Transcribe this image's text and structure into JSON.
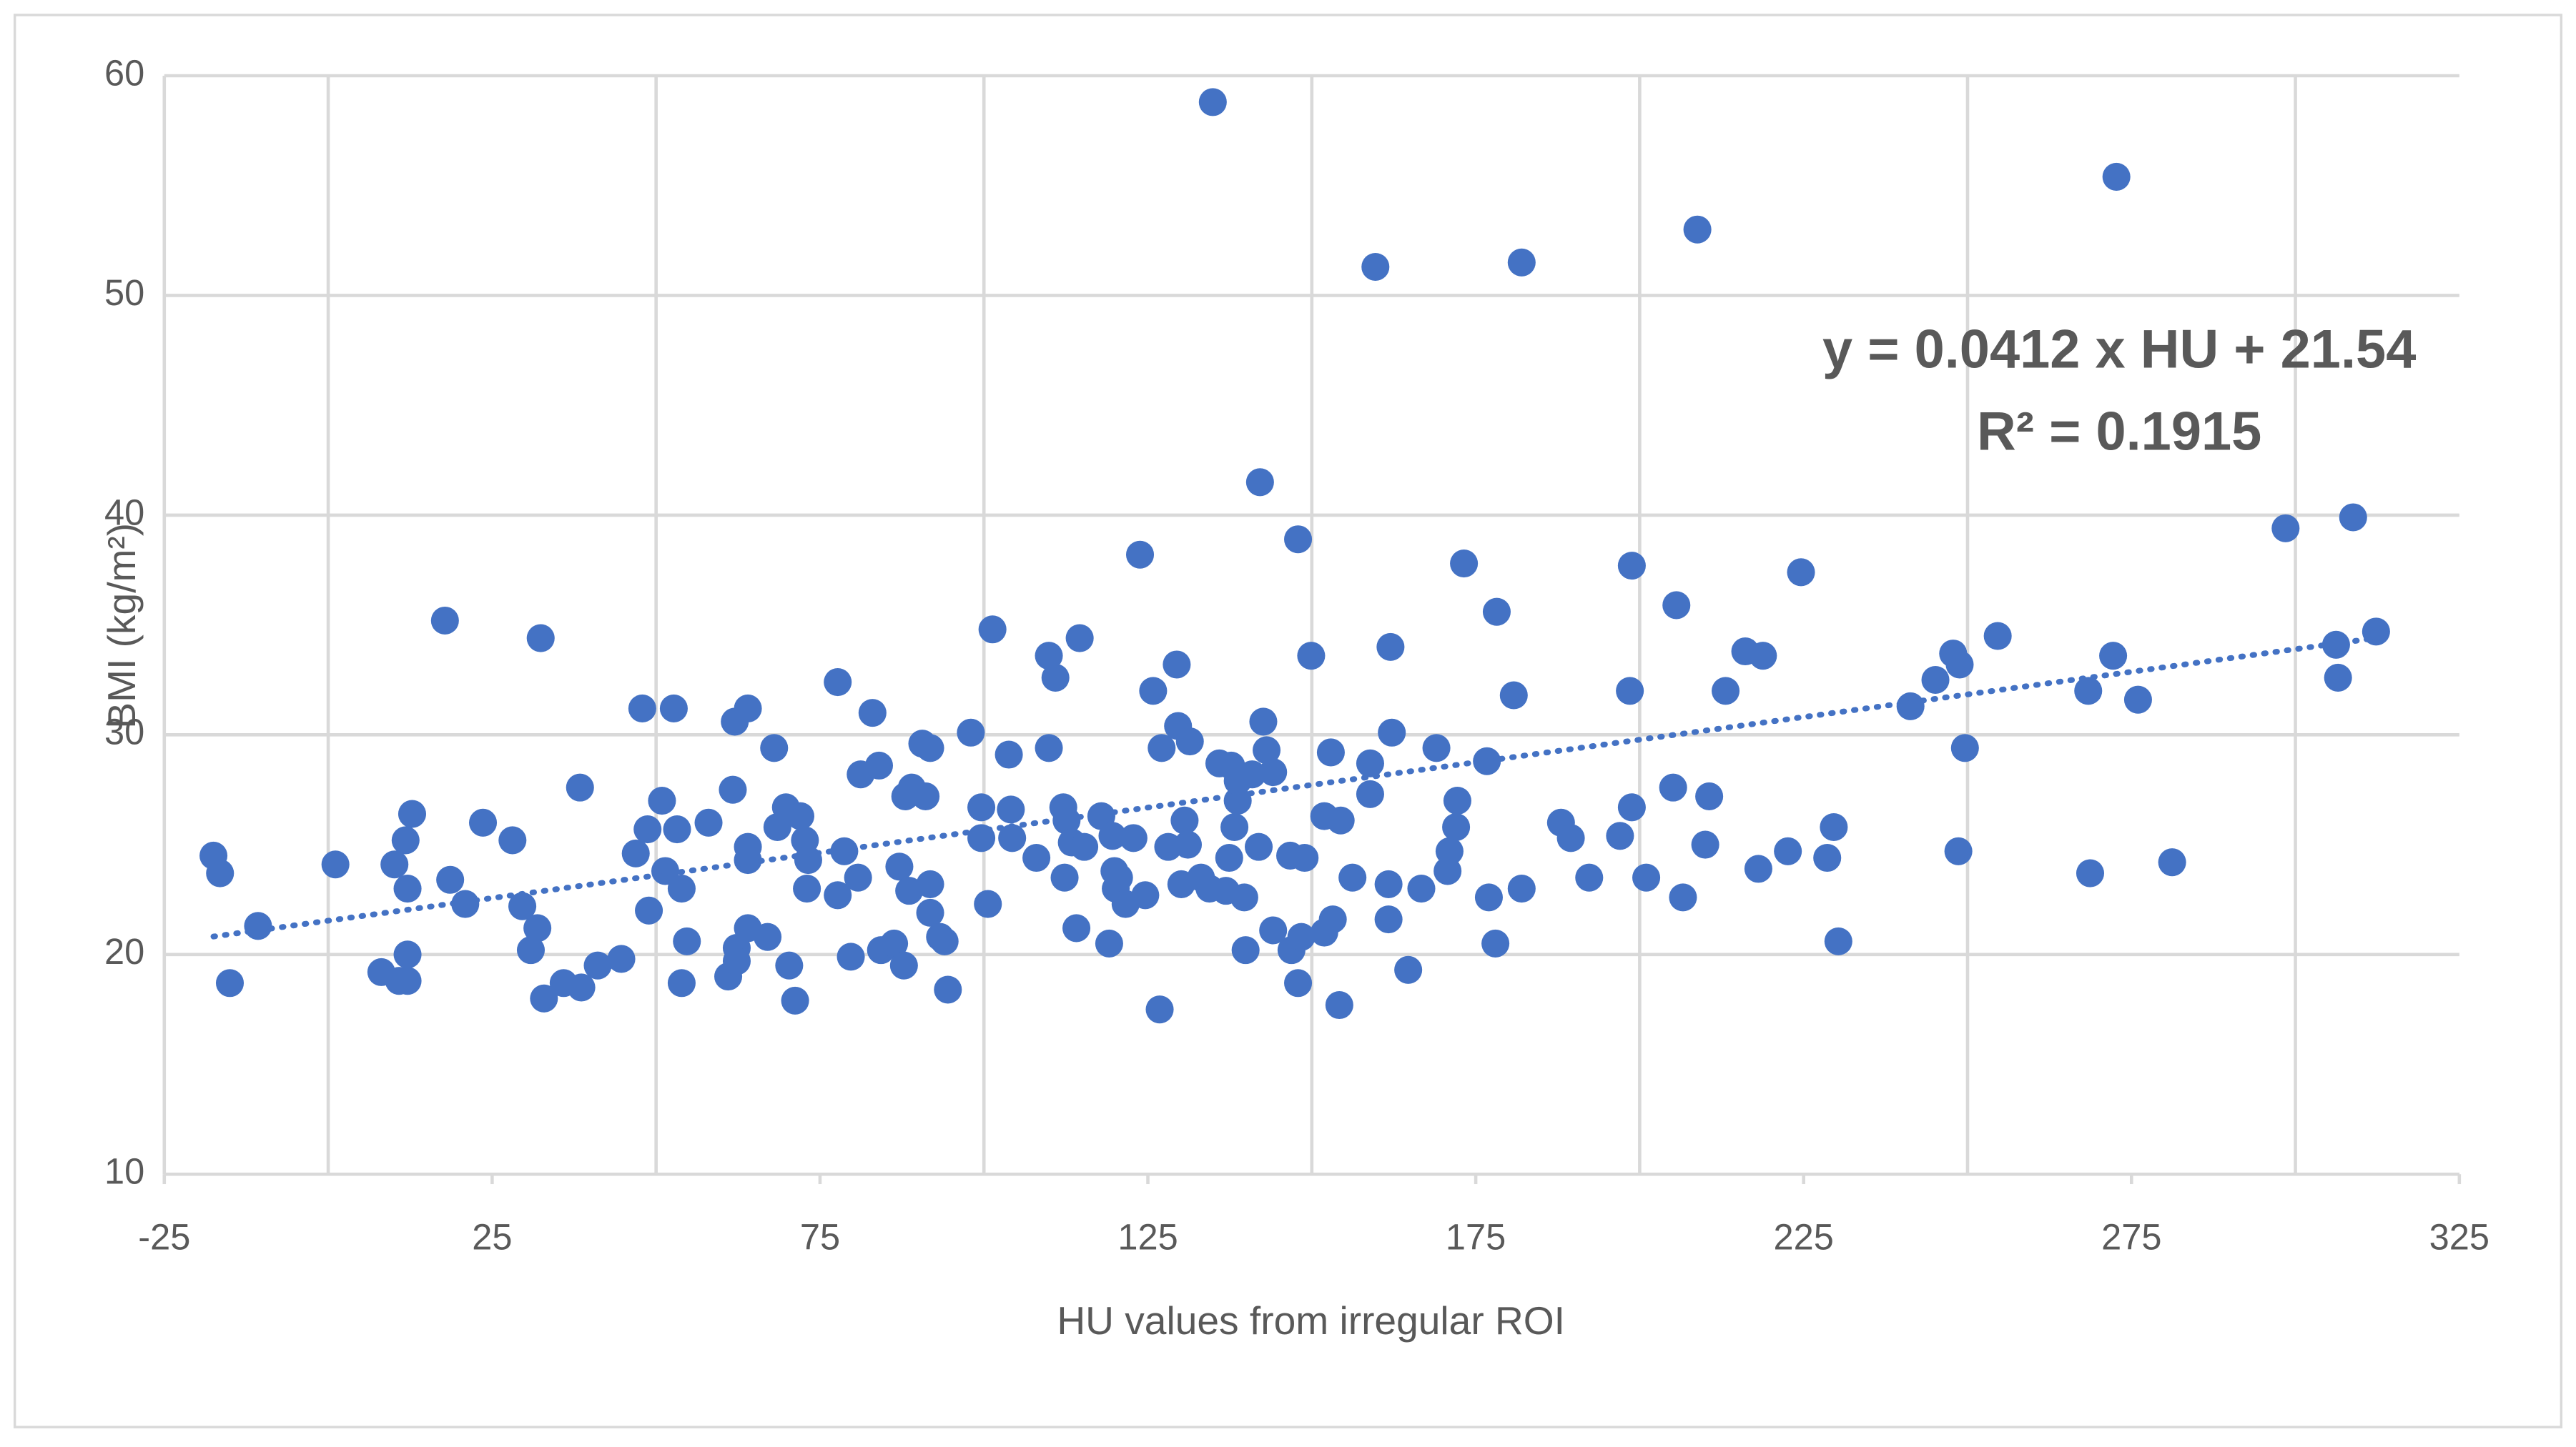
{
  "chart_data": {
    "type": "scatter",
    "x_label": "HU values from irregular ROI",
    "y_label": "BMI (kg/m²)",
    "annotations": [
      "y = 0.0412 x HU + 21.54",
      "R² = 0.1915"
    ],
    "trendline": {
      "slope": 0.0412,
      "intercept": 21.54,
      "style": "dotted"
    },
    "color": "#4472c4",
    "xlim": [
      -25,
      325
    ],
    "xticks": [
      -25,
      25,
      75,
      125,
      175,
      225,
      275,
      325
    ],
    "x_gridlines": [
      0,
      50,
      100,
      150,
      200,
      250,
      300
    ],
    "ylim": [
      10,
      60
    ],
    "yticks": [
      10,
      20,
      30,
      40,
      50,
      60
    ],
    "grid": true,
    "series": [
      {
        "name": "BMI",
        "x": [
          -17.5,
          -16.5,
          -15,
          -10.7,
          1.1,
          8.1,
          10.1,
          10.8,
          11.8,
          12.1,
          12.1,
          12.1,
          12.8,
          17.8,
          18.6,
          20.9,
          23.6,
          28.1,
          29.6,
          30.9,
          31.9,
          32.4,
          32.9,
          35.9,
          38.4,
          38.6,
          41.1,
          44.7,
          46.9,
          47.9,
          48.7,
          48.9,
          50.9,
          51.4,
          52.7,
          53.2,
          53.9,
          53.9,
          54.7,
          58.0,
          61.0,
          61.7,
          62.0,
          62.3,
          62.3,
          64.0,
          64.0,
          64.0,
          64.0,
          67.0,
          68.0,
          68.5,
          69.8,
          70.3,
          71.2,
          72.0,
          72.7,
          73.2,
          73.0,
          77.7,
          77.7,
          78.7,
          79.7,
          80.8,
          81.2,
          83.0,
          84.0,
          84.3,
          86.3,
          87.1,
          87.8,
          88.0,
          88.6,
          89.0,
          90.6,
          91.1,
          91.8,
          91.8,
          91.8,
          93.3,
          94.0,
          94.5,
          98.0,
          99.6,
          99.6,
          100.6,
          101.3,
          103.8,
          104.1,
          104.3,
          108.0,
          109.9,
          109.9,
          110.9,
          112.1,
          112.6,
          112.3,
          113.4,
          114.1,
          114.6,
          115.3,
          117.9,
          119.1,
          119.6,
          119.9,
          120.1,
          120.6,
          121.6,
          122.8,
          123.8,
          124.6,
          125.8,
          126.8,
          127.1,
          128.1,
          129.4,
          129.6,
          130.1,
          130.6,
          131.1,
          131.4,
          133.1,
          134.4,
          134.9,
          135.9,
          136.9,
          137.4,
          137.7,
          138.2,
          138.7,
          138.7,
          139.7,
          139.9,
          140.9,
          141.9,
          142.1,
          142.6,
          143.1,
          144.1,
          144.1,
          146.7,
          146.9,
          147.9,
          147.9,
          148.4,
          148.9,
          149.9,
          151.9,
          151.9,
          152.9,
          153.2,
          154.2,
          154.4,
          156.2,
          158.9,
          158.9,
          159.7,
          161.7,
          161.7,
          162.0,
          162.2,
          164.7,
          166.7,
          169.0,
          170.7,
          171.0,
          172.0,
          172.2,
          173.2,
          176.7,
          177.0,
          178.0,
          178.2,
          180.8,
          182.0,
          182.0,
          188.0,
          189.5,
          192.3,
          197.0,
          198.5,
          198.8,
          198.8,
          201.0,
          205.1,
          205.6,
          206.6,
          208.8,
          210.0,
          210.6,
          213.1,
          216.1,
          218.1,
          218.8,
          222.6,
          224.6,
          228.6,
          229.6,
          230.3,
          241.3,
          245.1,
          247.8,
          248.6,
          248.8,
          249.6,
          254.6,
          268.4,
          268.7,
          272.2,
          272.7,
          276.0,
          281.2,
          298.5,
          306.2,
          306.5,
          308.8,
          312.3
        ],
        "values": [
          24.5,
          23.7,
          18.7,
          21.3,
          24.1,
          19.2,
          24.1,
          18.8,
          25.2,
          23.0,
          20.0,
          18.8,
          26.4,
          35.2,
          23.4,
          22.3,
          26.0,
          25.2,
          22.2,
          20.2,
          21.2,
          34.4,
          18.0,
          18.7,
          27.6,
          18.5,
          19.5,
          19.8,
          24.6,
          31.2,
          25.7,
          22.0,
          27.0,
          23.8,
          31.2,
          25.7,
          23.0,
          18.7,
          20.6,
          26.0,
          19.0,
          27.5,
          30.6,
          20.3,
          19.7,
          31.2,
          24.9,
          24.3,
          21.2,
          20.8,
          29.4,
          25.8,
          26.7,
          19.5,
          17.9,
          26.3,
          25.2,
          24.3,
          23.0,
          32.4,
          22.7,
          24.7,
          19.9,
          23.5,
          28.2,
          31.0,
          28.6,
          20.2,
          20.5,
          24.0,
          19.5,
          27.2,
          22.9,
          27.6,
          29.6,
          27.2,
          23.2,
          29.4,
          21.9,
          20.8,
          20.6,
          18.4,
          30.1,
          26.7,
          25.3,
          22.3,
          34.8,
          29.1,
          26.6,
          25.3,
          24.4,
          33.6,
          29.4,
          32.6,
          26.7,
          26.1,
          23.5,
          25.1,
          21.2,
          34.4,
          24.9,
          26.3,
          20.5,
          25.4,
          23.8,
          23.0,
          23.5,
          22.3,
          25.3,
          38.2,
          22.7,
          32.0,
          17.5,
          29.4,
          24.9,
          33.2,
          30.4,
          23.2,
          26.1,
          25.0,
          29.7,
          23.5,
          23.0,
          58.8,
          28.7,
          22.9,
          24.4,
          28.6,
          25.8,
          27.0,
          27.9,
          22.6,
          20.2,
          28.2,
          24.9,
          41.5,
          30.6,
          29.3,
          28.3,
          21.1,
          24.5,
          20.2,
          38.9,
          18.7,
          20.8,
          24.4,
          33.6,
          26.3,
          21.0,
          29.2,
          21.6,
          17.7,
          26.1,
          23.5,
          28.7,
          27.3,
          51.3,
          23.2,
          21.6,
          34.0,
          30.1,
          19.3,
          23.0,
          29.4,
          23.8,
          24.7,
          25.8,
          27.0,
          37.8,
          28.8,
          22.6,
          20.5,
          35.6,
          31.8,
          23.0,
          51.5,
          26.0,
          25.3,
          23.5,
          25.4,
          32.0,
          37.7,
          26.7,
          23.5,
          27.6,
          35.9,
          22.6,
          53.0,
          25.0,
          27.2,
          32.0,
          33.8,
          23.9,
          33.6,
          24.7,
          37.4,
          24.4,
          25.8,
          20.6,
          31.3,
          32.5,
          33.7,
          24.7,
          33.2,
          29.4,
          34.5,
          32.0,
          23.7,
          33.6,
          55.4,
          31.6,
          24.2,
          39.4,
          34.1,
          32.6,
          39.9,
          34.7
        ]
      }
    ]
  }
}
